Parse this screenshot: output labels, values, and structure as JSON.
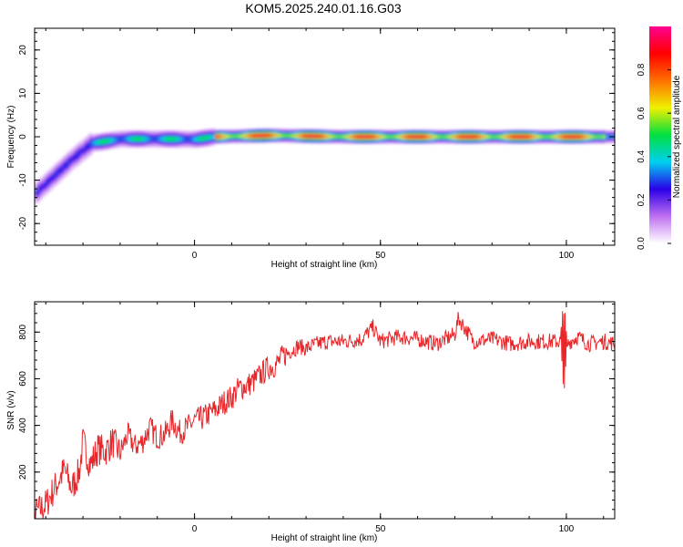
{
  "title": "KOM5.2025.240.01.16.G03",
  "colors": {
    "snr_line": "#e8262a",
    "axis": "#000000"
  },
  "chart_data": [
    {
      "type": "heatmap",
      "xlabel": "Height of straight line (km)",
      "ylabel": "Frequency (Hz)",
      "xlim": [
        -43,
        113
      ],
      "ylim": [
        -25,
        25
      ],
      "xticks": [
        0,
        50,
        100
      ],
      "yticks": [
        -20,
        -10,
        0,
        10,
        20
      ],
      "xticklabels": [
        "0",
        "50",
        "100"
      ],
      "yticklabels": [
        "-20",
        "-10",
        "0",
        "10",
        "20"
      ],
      "ridge": {
        "x": [
          -43,
          -38,
          -33,
          -28,
          -20,
          -10,
          0,
          5,
          20,
          40,
          60,
          80,
          100,
          113
        ],
        "freq": [
          -13,
          -9,
          -5,
          -1.5,
          -0.5,
          -0.5,
          -0.6,
          0,
          0.3,
          0,
          0,
          0,
          0,
          0
        ]
      },
      "colorbar": {
        "label": "Normalized spectral amplitude",
        "range": [
          0,
          1
        ],
        "ticks": [
          0.0,
          0.2,
          0.4,
          0.6,
          0.8
        ],
        "ticklabels": [
          "0.0",
          "0.2",
          "0.4",
          "0.6",
          "0.8"
        ],
        "colormap": [
          "#ffffff",
          "#c070f0",
          "#2a00e8",
          "#00d0f0",
          "#00e040",
          "#f0f000",
          "#ff7000",
          "#ff0000",
          "#ff0090"
        ]
      }
    },
    {
      "type": "line",
      "xlabel": "Height of straight line (km)",
      "ylabel": "SNR (v/v)",
      "xlim": [
        -43,
        113
      ],
      "ylim": [
        0,
        930
      ],
      "xticks": [
        0,
        50,
        100
      ],
      "yticks": [
        200,
        400,
        600,
        800
      ],
      "xticklabels": [
        "0",
        "50",
        "100"
      ],
      "yticklabels": [
        "200",
        "400",
        "600",
        "800"
      ],
      "series": [
        {
          "x": [
            -43,
            -40,
            -37,
            -35,
            -33,
            -31,
            -30,
            -28,
            -26,
            -24,
            -22,
            -20,
            -18,
            -16,
            -14,
            -12,
            -10,
            -8,
            -6,
            -4,
            -2,
            0,
            2,
            4,
            6,
            8,
            10,
            12,
            14,
            16,
            18,
            20,
            22,
            24,
            26,
            28,
            30,
            33,
            36,
            40,
            45,
            48,
            50,
            55,
            60,
            65,
            70,
            71,
            75,
            80,
            85,
            90,
            95,
            98,
            99,
            100,
            101,
            103,
            106,
            110,
            113
          ],
          "values": [
            20,
            60,
            150,
            210,
            130,
            200,
            330,
            230,
            300,
            290,
            330,
            280,
            360,
            310,
            330,
            390,
            350,
            360,
            420,
            370,
            390,
            420,
            430,
            450,
            470,
            500,
            520,
            560,
            570,
            590,
            620,
            650,
            660,
            700,
            720,
            740,
            730,
            750,
            760,
            760,
            770,
            820,
            760,
            780,
            770,
            750,
            790,
            860,
            760,
            770,
            750,
            760,
            760,
            760,
            760,
            740,
            760,
            780,
            750,
            760,
            750
          ]
        }
      ]
    }
  ]
}
